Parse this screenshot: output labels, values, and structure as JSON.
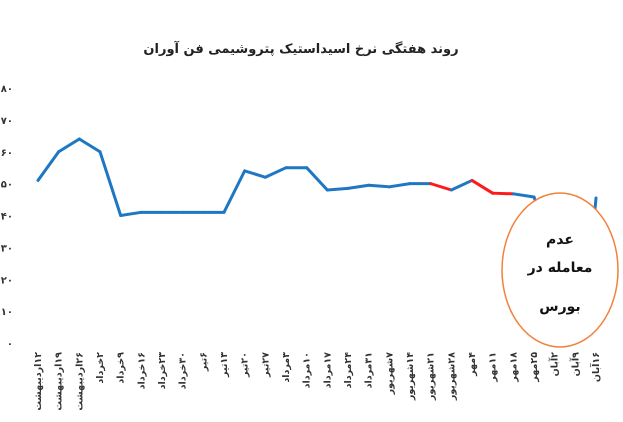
{
  "chart_data": {
    "type": "line",
    "title": "روند هفتگی نرخ اسیداستیک پتروشیمی فن آوران",
    "xlabel": "",
    "ylabel": "",
    "ylim": [
      0,
      80
    ],
    "yticks": [
      0,
      10,
      20,
      30,
      40,
      50,
      60,
      70,
      80
    ],
    "ytick_labels": [
      "۰",
      "۱۰",
      "۲۰",
      "۳۰",
      "۴۰",
      "۵۰",
      "۶۰",
      "۷۰",
      "۸۰"
    ],
    "grid": false,
    "legend": "none",
    "categories": [
      "۱۲اردیبهشت",
      "۱۹اردیبهشت",
      "۲۶اردیبهشت",
      "۲خرداد",
      "۹خرداد",
      "۱۶خرداد",
      "۲۳خرداد",
      "۳۰خرداد",
      "۶تیر",
      "۱۳تیر",
      "۲۰تیر",
      "۲۷تیر",
      "۳مرداد",
      "۱۰مرداد",
      "۱۷مرداد",
      "۲۴مرداد",
      "۳۱مرداد",
      "۷شهریور",
      "۱۴شهریور",
      "۲۱شهریور",
      "۲۸شهریور",
      "۴مهر",
      "۱۱مهر",
      "۱۸مهر",
      "۲۵مهر",
      "۲آبان",
      "۹آبان",
      "۱۶آبان"
    ],
    "series": [
      {
        "values": [
          51,
          60,
          64,
          60,
          40,
          41,
          41,
          41,
          41,
          41,
          54,
          52,
          55,
          55,
          48,
          48.5,
          49.5,
          49,
          50,
          50,
          48,
          51,
          47,
          46.8,
          45.8,
          null,
          null,
          45.5
        ],
        "segment_colors": [
          "#1f77c4",
          "#1f77c4",
          "#1f77c4",
          "#1f77c4",
          "#1f77c4",
          "#1f77c4",
          "#1f77c4",
          "#1f77c4",
          "#1f77c4",
          "#1f77c4",
          "#1f77c4",
          "#1f77c4",
          "#1f77c4",
          "#1f77c4",
          "#1f77c4",
          "#1f77c4",
          "#1f77c4",
          "#1f77c4",
          "#1f77c4",
          "#ff1a1a",
          "#1f77c4",
          "#ff1a1a",
          "#ff1a1a",
          "#1f77c4",
          "#1f77c4",
          "#1f77c4",
          "#1f77c4"
        ]
      }
    ],
    "annotation": {
      "lines": [
        "عدم",
        "معامله در",
        "بورس"
      ],
      "border_color": "#f0823c"
    },
    "colors": {
      "line": "#1f77c4",
      "highlight": "#ff1a1a",
      "annotation_border": "#f0823c"
    }
  }
}
